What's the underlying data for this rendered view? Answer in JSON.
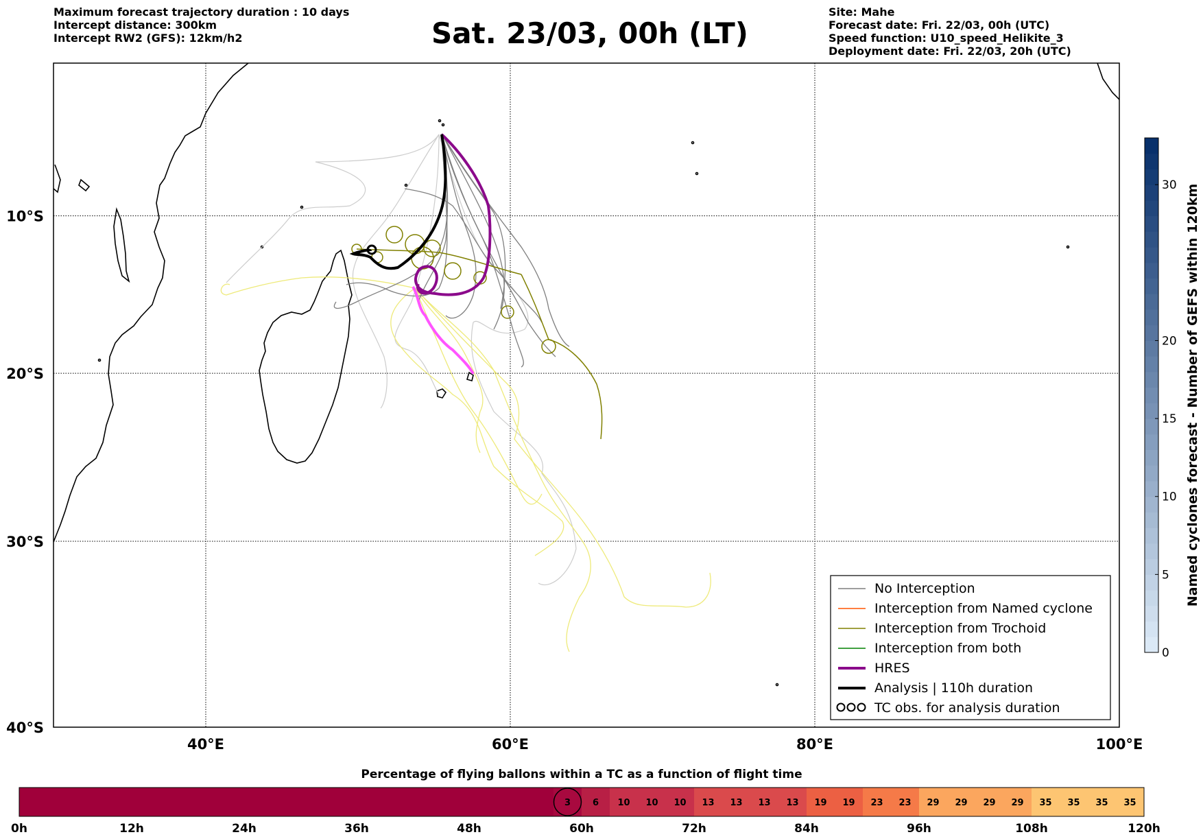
{
  "header": {
    "left": [
      "Maximum forecast trajectory duration : 10 days",
      "Intercept distance: 300km",
      "Intercept RW2 (GFS):  12km/h2"
    ],
    "right": [
      "Site: Mahe",
      "Forecast date: Fri. 22/03, 00h (UTC)",
      "Speed function: U10_speed_Helikite_3",
      "Deployment date: Fri. 22/03, 20h (UTC)"
    ],
    "title": "Sat. 23/03, 00h (LT)"
  },
  "map": {
    "lon_range": [
      30,
      100
    ],
    "lat_range": [
      -40,
      0
    ],
    "lon_ticks": [
      {
        "value": 40,
        "label": "40°E"
      },
      {
        "value": 60,
        "label": "60°E"
      },
      {
        "value": 80,
        "label": "80°E"
      },
      {
        "value": 100,
        "label": "100°E"
      }
    ],
    "lat_ticks": [
      {
        "value": -10,
        "label": "10°S"
      },
      {
        "value": -20,
        "label": "20°S"
      },
      {
        "value": -30,
        "label": "30°S"
      },
      {
        "value": -40,
        "label": "40°S"
      }
    ],
    "colors": {
      "no_interception": "#7f7f7f",
      "no_interception_light": "#c8c8c8",
      "named_cyclone": "#ff6a00",
      "trochoid": "#808000",
      "both": "#008000",
      "hres": "#8b0a8b",
      "hres_track": "#ff55ff",
      "analysis": "#000000",
      "yellow": "#eeea7a"
    }
  },
  "legend": {
    "items": [
      {
        "label": "No Interception",
        "color": "#7f7f7f",
        "style": "thin"
      },
      {
        "label": "Interception from Named cyclone",
        "color": "#ff5500",
        "style": "thin"
      },
      {
        "label": "Interception from Trochoid",
        "color": "#808000",
        "style": "thin"
      },
      {
        "label": "Interception from both",
        "color": "#008000",
        "style": "thin"
      },
      {
        "label": "HRES",
        "color": "#8b0a8b",
        "style": "thick"
      },
      {
        "label": "Analysis | 110h duration",
        "color": "#000000",
        "style": "thick"
      },
      {
        "label": "TC obs. for analysis duration",
        "color": "#000000",
        "style": "loops"
      }
    ]
  },
  "colorbar_right": {
    "label": "Named cyclones forecast - Number of GEFS within 120km",
    "range": [
      0,
      33
    ],
    "ticks": [
      0,
      5,
      10,
      15,
      20,
      30
    ],
    "color_low": "#dbe9f6",
    "color_high": "#08306b"
  },
  "timeline": {
    "title": "Percentage of flying ballons within a TC as a function of flight time",
    "start_hour": 0,
    "end_hour": 120,
    "zero_color": "#a0003a",
    "zero_until_hour": 60,
    "marker_hour": 58.5,
    "cells": [
      {
        "value": 3,
        "color": "#a8093f"
      },
      {
        "value": 6,
        "color": "#b81f45"
      },
      {
        "value": 10,
        "color": "#c8314b"
      },
      {
        "value": 10,
        "color": "#c8314b"
      },
      {
        "value": 10,
        "color": "#c8314b"
      },
      {
        "value": 13,
        "color": "#da4a4c"
      },
      {
        "value": 13,
        "color": "#da4a4c"
      },
      {
        "value": 13,
        "color": "#da4a4c"
      },
      {
        "value": 13,
        "color": "#da4a4c"
      },
      {
        "value": 19,
        "color": "#ec6043"
      },
      {
        "value": 19,
        "color": "#ec6043"
      },
      {
        "value": 23,
        "color": "#f57a48"
      },
      {
        "value": 23,
        "color": "#f57a48"
      },
      {
        "value": 29,
        "color": "#fba65e"
      },
      {
        "value": 29,
        "color": "#fba65e"
      },
      {
        "value": 29,
        "color": "#fba65e"
      },
      {
        "value": 29,
        "color": "#fba65e"
      },
      {
        "value": 35,
        "color": "#fdc572"
      },
      {
        "value": 35,
        "color": "#fdc572"
      },
      {
        "value": 35,
        "color": "#fdc572"
      },
      {
        "value": 35,
        "color": "#fdc572"
      }
    ],
    "ticks": [
      {
        "hour": 0,
        "label": "0h"
      },
      {
        "hour": 12,
        "label": "12h"
      },
      {
        "hour": 24,
        "label": "24h"
      },
      {
        "hour": 36,
        "label": "36h"
      },
      {
        "hour": 48,
        "label": "48h"
      },
      {
        "hour": 60,
        "label": "60h"
      },
      {
        "hour": 72,
        "label": "72h"
      },
      {
        "hour": 84,
        "label": "84h"
      },
      {
        "hour": 96,
        "label": "96h"
      },
      {
        "hour": 108,
        "label": "108h"
      },
      {
        "hour": 120,
        "label": "120h"
      }
    ]
  }
}
